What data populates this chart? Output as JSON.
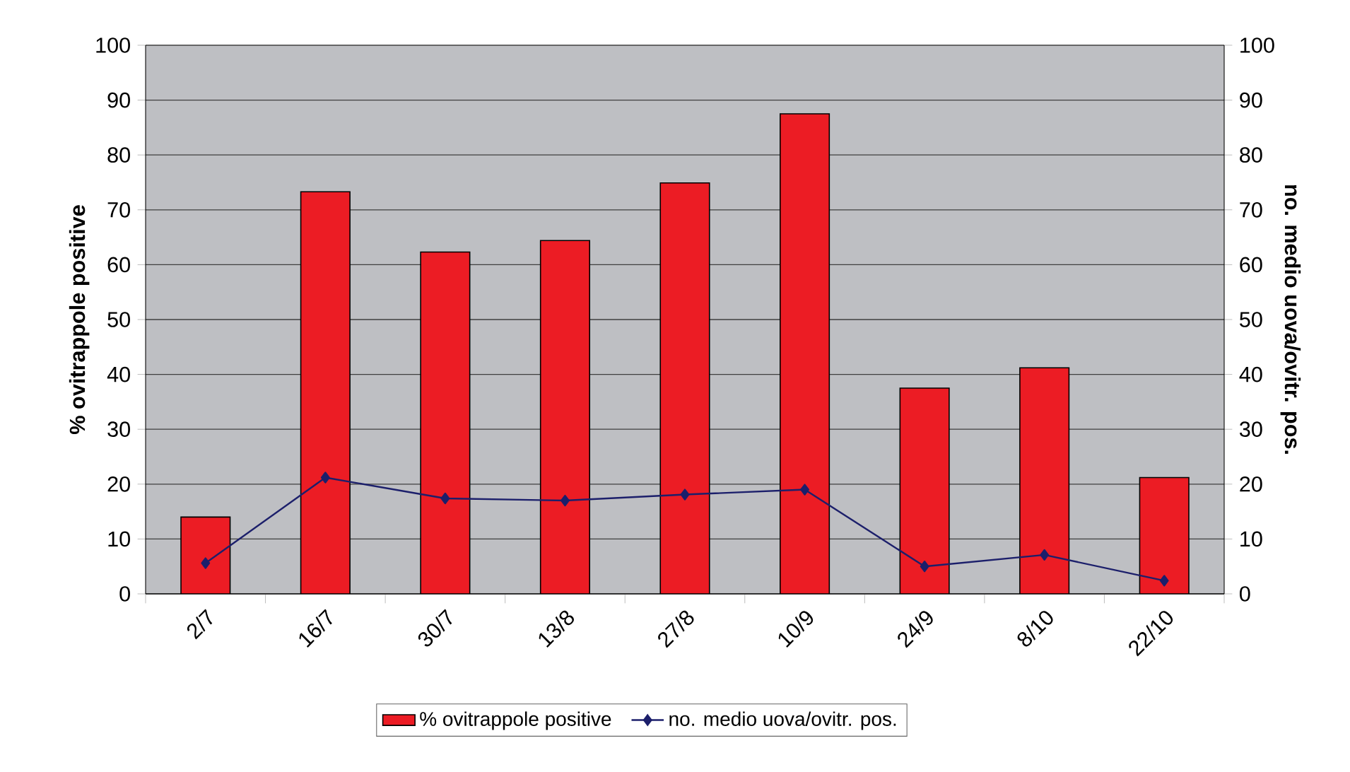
{
  "chart_data": {
    "type": "bar",
    "ylabel": "% ovitrappole positive",
    "y2label": "no. medio uova/ovitr. pos.",
    "categories": [
      "2/7",
      "16/7",
      "30/7",
      "13/8",
      "27/8",
      "10/9",
      "24/9",
      "8/10",
      "22/10"
    ],
    "series": [
      {
        "name": "% ovitrappole positive",
        "color": "#ec1c24",
        "values": [
          14.0,
          73.3,
          62.3,
          64.4,
          74.9,
          87.5,
          37.5,
          41.2,
          21.2
        ]
      },
      {
        "name": "no. medio uova/ovitr. pos.",
        "type": "line",
        "axis": "y2",
        "color": "#1c1f6b",
        "marker": "diamond",
        "values": [
          5.6,
          21.2,
          17.4,
          17.0,
          18.1,
          19.0,
          5.0,
          7.1,
          2.4
        ]
      }
    ],
    "ylim": [
      0,
      100
    ],
    "yticks": [
      0,
      10,
      20,
      30,
      40,
      50,
      60,
      70,
      80,
      90,
      100
    ],
    "y2lim": [
      0,
      100
    ],
    "y2ticks": [
      0,
      10,
      20,
      30,
      40,
      50,
      60,
      70,
      80,
      90,
      100
    ],
    "grid": "y",
    "legend": "bottom"
  }
}
